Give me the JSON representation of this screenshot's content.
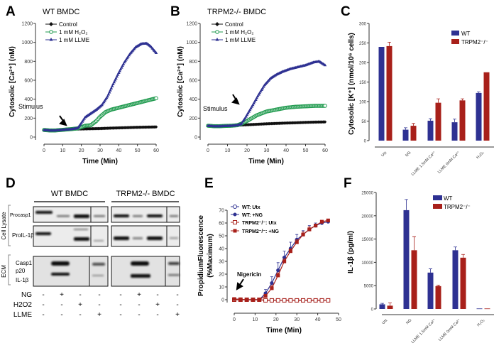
{
  "panels": {
    "A": "A",
    "B": "B",
    "C": "C",
    "D": "D",
    "E": "E",
    "F": "F"
  },
  "chart_data": [
    {
      "id": "A",
      "type": "line",
      "title": "WT BMDC",
      "xlabel": "Time (Min)",
      "ylabel": "Cytosolic [Ca²⁺] (nM)",
      "xlim": [
        0,
        60
      ],
      "ylim": [
        0,
        1200
      ],
      "xticks": [
        0,
        10,
        20,
        30,
        40,
        50,
        60
      ],
      "yticks": [
        0,
        200,
        400,
        600,
        800,
        1000,
        1200
      ],
      "annotation": "Stimulus",
      "series": [
        {
          "name": "Control",
          "color": "#111111",
          "marker": "diamond",
          "points": [
            [
              0,
              75
            ],
            [
              3,
              70
            ],
            [
              6,
              70
            ],
            [
              9,
              75
            ],
            [
              12,
              80
            ],
            [
              15,
              85
            ],
            [
              18,
              85
            ],
            [
              21,
              86
            ],
            [
              25,
              88
            ],
            [
              30,
              90
            ],
            [
              35,
              94
            ],
            [
              40,
              97
            ],
            [
              45,
              100
            ],
            [
              50,
              103
            ],
            [
              55,
              105
            ],
            [
              60,
              107
            ]
          ]
        },
        {
          "name": "1 mM H₂O₂",
          "color": "#1f9a4e",
          "marker": "circle-open",
          "points": [
            [
              0,
              75
            ],
            [
              3,
              70
            ],
            [
              6,
              70
            ],
            [
              9,
              75
            ],
            [
              12,
              80
            ],
            [
              15,
              85
            ],
            [
              18,
              92
            ],
            [
              20,
              105
            ],
            [
              22,
              120
            ],
            [
              25,
              125
            ],
            [
              28,
              170
            ],
            [
              30,
              215
            ],
            [
              33,
              265
            ],
            [
              36,
              290
            ],
            [
              40,
              310
            ],
            [
              45,
              335
            ],
            [
              50,
              360
            ],
            [
              55,
              385
            ],
            [
              60,
              410
            ]
          ]
        },
        {
          "name": "1 mM LLME",
          "color": "#2e3192",
          "marker": "triangle",
          "points": [
            [
              0,
              75
            ],
            [
              3,
              70
            ],
            [
              6,
              70
            ],
            [
              9,
              75
            ],
            [
              12,
              80
            ],
            [
              15,
              85
            ],
            [
              18,
              95
            ],
            [
              20,
              150
            ],
            [
              22,
              210
            ],
            [
              25,
              250
            ],
            [
              28,
              290
            ],
            [
              31,
              340
            ],
            [
              34,
              430
            ],
            [
              37,
              560
            ],
            [
              40,
              680
            ],
            [
              43,
              790
            ],
            [
              46,
              880
            ],
            [
              49,
              950
            ],
            [
              52,
              985
            ],
            [
              55,
              990
            ],
            [
              57,
              960
            ],
            [
              60,
              890
            ]
          ]
        }
      ]
    },
    {
      "id": "B",
      "type": "line",
      "title": "TRPM2-/- BMDC",
      "xlabel": "Time (Min)",
      "ylabel": "Cytosolic [Ca²⁺] (nM)",
      "xlim": [
        0,
        60
      ],
      "ylim": [
        0,
        1200
      ],
      "xticks": [
        0,
        10,
        20,
        30,
        40,
        50,
        60
      ],
      "yticks": [
        0,
        200,
        400,
        600,
        800,
        1000,
        1200
      ],
      "annotation": "Stimulus",
      "series": [
        {
          "name": "Control",
          "color": "#111111",
          "marker": "diamond",
          "points": [
            [
              0,
              120
            ],
            [
              3,
              115
            ],
            [
              6,
              115
            ],
            [
              9,
              118
            ],
            [
              12,
              120
            ],
            [
              15,
              125
            ],
            [
              20,
              130
            ],
            [
              25,
              135
            ],
            [
              30,
              140
            ],
            [
              35,
              144
            ],
            [
              40,
              148
            ],
            [
              45,
              151
            ],
            [
              50,
              155
            ],
            [
              55,
              158
            ],
            [
              60,
              160
            ]
          ]
        },
        {
          "name": "1 mM H₂O₂",
          "color": "#1f9a4e",
          "marker": "circle-open",
          "points": [
            [
              0,
              120
            ],
            [
              3,
              115
            ],
            [
              6,
              115
            ],
            [
              9,
              118
            ],
            [
              12,
              120
            ],
            [
              15,
              125
            ],
            [
              17,
              140
            ],
            [
              20,
              170
            ],
            [
              25,
              230
            ],
            [
              30,
              270
            ],
            [
              35,
              290
            ],
            [
              40,
              310
            ],
            [
              45,
              320
            ],
            [
              50,
              325
            ],
            [
              55,
              330
            ],
            [
              60,
              330
            ]
          ]
        },
        {
          "name": "1 mM LLME",
          "color": "#2e3192",
          "marker": "triangle",
          "points": [
            [
              0,
              120
            ],
            [
              3,
              115
            ],
            [
              6,
              115
            ],
            [
              9,
              118
            ],
            [
              12,
              120
            ],
            [
              15,
              125
            ],
            [
              17,
              140
            ],
            [
              19,
              200
            ],
            [
              21,
              270
            ],
            [
              23,
              340
            ],
            [
              26,
              450
            ],
            [
              29,
              550
            ],
            [
              32,
              620
            ],
            [
              35,
              660
            ],
            [
              38,
              690
            ],
            [
              42,
              720
            ],
            [
              46,
              740
            ],
            [
              50,
              760
            ],
            [
              54,
              790
            ],
            [
              57,
              800
            ],
            [
              60,
              760
            ]
          ]
        }
      ]
    },
    {
      "id": "C",
      "type": "bar",
      "title": "",
      "ylabel": "Cytosolic [K⁺] (nmol/10⁶ cells)",
      "ylim": [
        0,
        300
      ],
      "yticks": [
        0,
        50,
        100,
        150,
        200,
        250,
        300
      ],
      "categories": [
        "Utx",
        "NG",
        "LLME 1.5mM Ca²⁺",
        "LLME 0mM Ca²⁺",
        "H₂O₂"
      ],
      "series": [
        {
          "name": "WT",
          "color": "#2e3192",
          "values": [
            240,
            28,
            51,
            47,
            122
          ],
          "errors": [
            0,
            5,
            5,
            8,
            3
          ]
        },
        {
          "name": "TRPM2⁻/⁻",
          "color": "#a8201a",
          "values": [
            242,
            38,
            97,
            103,
            175
          ],
          "errors": [
            10,
            6,
            10,
            4,
            0
          ]
        }
      ]
    },
    {
      "id": "E",
      "type": "line",
      "title": "",
      "xlabel": "Time (Min)",
      "ylabel": [
        "PropidiumFluorescence",
        "(%Maximum)"
      ],
      "xlim": [
        0,
        50
      ],
      "ylim": [
        0,
        70
      ],
      "xticks": [
        0,
        10,
        20,
        30,
        40,
        50
      ],
      "yticks": [
        0,
        10,
        20,
        30,
        40,
        50,
        60,
        70
      ],
      "annotation": "Nigericin",
      "series": [
        {
          "name": "WT: Utx",
          "color": "#2e3192",
          "marker": "circle-open",
          "x": [
            0,
            3,
            6,
            9,
            12,
            15,
            18,
            21,
            24,
            27,
            30,
            33,
            36,
            39,
            42,
            45
          ],
          "y": [
            0,
            0,
            0,
            0,
            0,
            -0.5,
            -0.5,
            -0.5,
            -0.5,
            -0.5,
            -0.5,
            -0.5,
            -0.5,
            -0.5,
            -0.5,
            -0.5
          ],
          "errors": [
            0,
            0,
            0,
            0,
            0,
            0,
            0,
            0,
            0,
            0,
            0,
            0,
            0,
            0,
            0,
            0
          ]
        },
        {
          "name": "WT: +NG",
          "color": "#2e3192",
          "marker": "circle",
          "x": [
            0,
            3,
            6,
            9,
            12,
            15,
            18,
            21,
            24,
            27,
            30,
            33,
            36,
            39,
            42,
            45
          ],
          "y": [
            0.5,
            0.3,
            0,
            0,
            0,
            5,
            13,
            23,
            33,
            40,
            47,
            51,
            55,
            58,
            60,
            61
          ],
          "errors": [
            0,
            0,
            0,
            0,
            0,
            3,
            5,
            6,
            5,
            5,
            4,
            3,
            3,
            2,
            2,
            2
          ]
        },
        {
          "name": "TRPM2⁻/⁻: Utx",
          "color": "#a8201a",
          "marker": "square-open",
          "x": [
            0,
            3,
            6,
            9,
            12,
            15,
            18,
            21,
            24,
            27,
            30,
            33,
            36,
            39,
            42,
            45
          ],
          "y": [
            0,
            0,
            0,
            0,
            0,
            -0.5,
            -0.5,
            -0.5,
            -0.5,
            -0.5,
            -0.5,
            -0.5,
            -0.5,
            -0.5,
            -0.5,
            -0.5
          ],
          "errors": [
            0,
            0,
            0,
            0,
            0,
            0,
            0,
            0,
            0,
            0,
            0,
            0,
            0,
            0,
            0,
            0
          ]
        },
        {
          "name": "TRPM2⁻/⁻: +NG",
          "color": "#a8201a",
          "marker": "square",
          "x": [
            0,
            3,
            6,
            9,
            12,
            15,
            18,
            21,
            24,
            27,
            30,
            33,
            36,
            39,
            42,
            45
          ],
          "y": [
            0.5,
            0.3,
            0,
            0,
            0,
            3,
            9,
            19,
            30,
            38,
            45,
            51,
            55,
            58,
            61,
            62
          ],
          "errors": [
            0,
            0,
            0,
            0,
            0,
            1,
            2,
            2,
            2,
            2,
            2,
            2,
            2,
            1,
            1,
            1
          ]
        }
      ]
    },
    {
      "id": "F",
      "type": "bar",
      "title": "",
      "ylabel": "IL-1β (pg/ml)",
      "ylim": [
        0,
        25000
      ],
      "yticks": [
        0,
        5000,
        10000,
        15000,
        20000,
        25000
      ],
      "categories": [
        "Utx",
        "NG",
        "LLME 1.5mM Ca²⁺",
        "LLME 0mM Ca²⁺",
        "H₂O₂"
      ],
      "series": [
        {
          "name": "WT",
          "color": "#2e3192",
          "values": [
            1000,
            21200,
            7800,
            12600,
            100
          ],
          "errors": [
            200,
            2300,
            800,
            700,
            0
          ]
        },
        {
          "name": "TRPM2⁻/⁻",
          "color": "#a8201a",
          "values": [
            700,
            12600,
            4900,
            11000,
            100
          ],
          "errors": [
            600,
            2900,
            200,
            700,
            0
          ]
        }
      ]
    }
  ],
  "blot": {
    "groups": [
      "WT BMDC",
      "TRPM2-/- BMDC"
    ],
    "sections": [
      "Cell Lysate",
      "ECM"
    ],
    "rows": [
      "Procasp1",
      "ProIL-1β",
      "Casp1",
      "p20",
      "IL-1β"
    ],
    "treatments": [
      {
        "name": "NG",
        "signs": [
          "-",
          "+",
          "-",
          "-",
          "-",
          "+",
          "-",
          "-"
        ]
      },
      {
        "name": "H2O2",
        "signs": [
          "-",
          "-",
          "+",
          "-",
          "-",
          "-",
          "+",
          "-"
        ]
      },
      {
        "name": "LLME",
        "signs": [
          "-",
          "-",
          "-",
          "+",
          "-",
          "-",
          "-",
          "+"
        ]
      }
    ]
  }
}
